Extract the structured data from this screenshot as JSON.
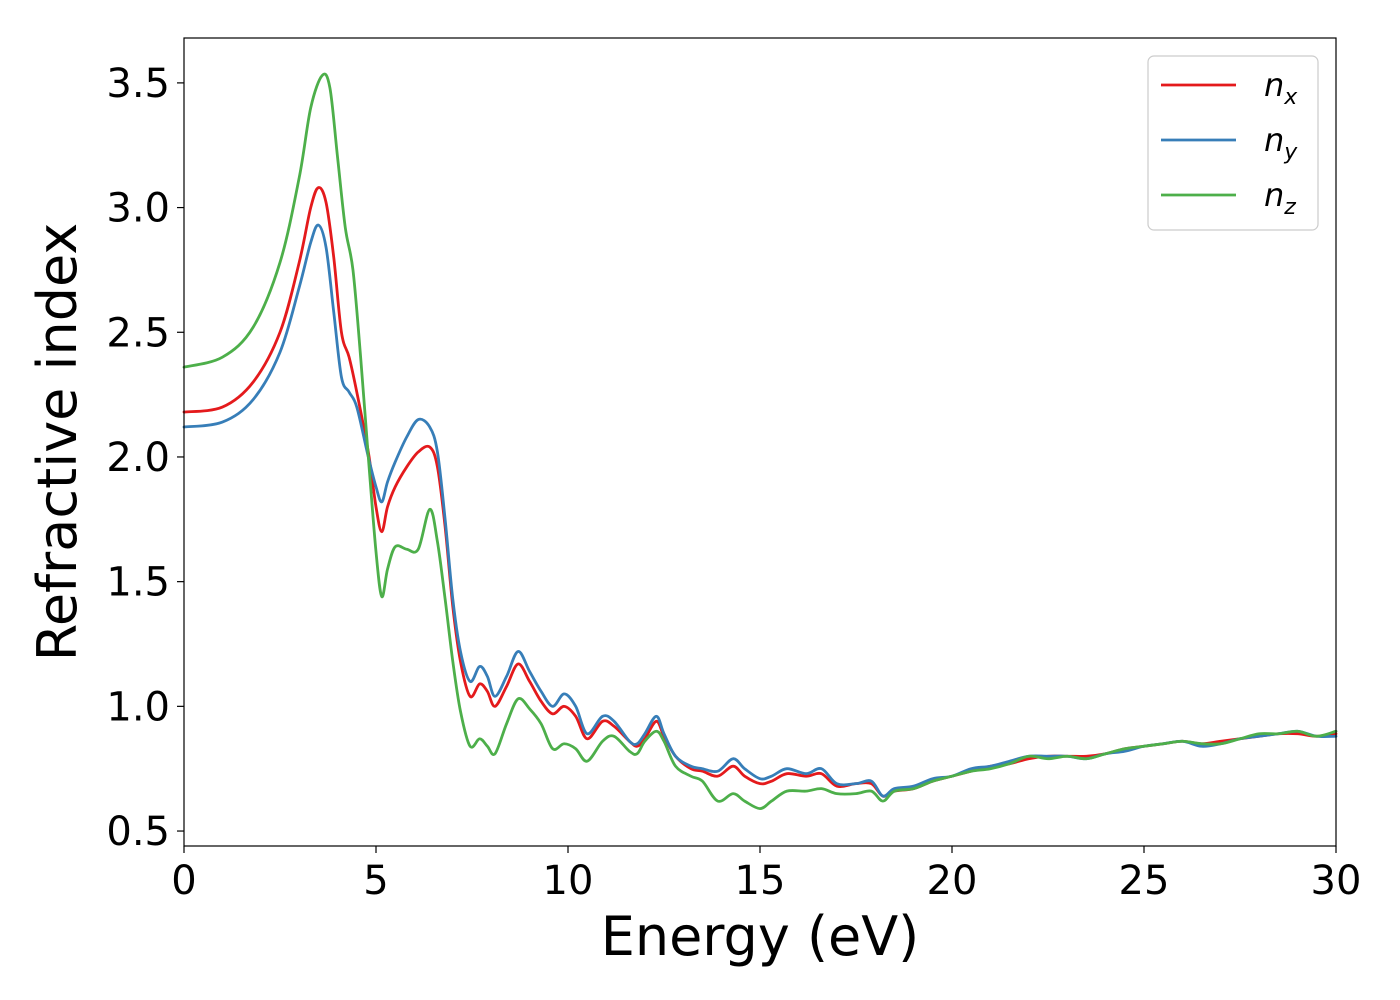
{
  "chart_data": {
    "type": "line",
    "xlabel": "Energy (eV)",
    "ylabel": "Refractive index",
    "xlim": [
      0,
      30
    ],
    "ylim": [
      0.44,
      3.68
    ],
    "xticks": [
      0,
      5,
      10,
      15,
      20,
      25,
      30
    ],
    "xtick_labels": [
      "0",
      "5",
      "10",
      "15",
      "20",
      "25",
      "30"
    ],
    "yticks": [
      0.5,
      1.0,
      1.5,
      2.0,
      2.5,
      3.0,
      3.5
    ],
    "ytick_labels": [
      "0.5",
      "1.0",
      "1.5",
      "2.0",
      "2.5",
      "3.0",
      "3.5"
    ],
    "grid": false,
    "legend_position": "top-right",
    "series": [
      {
        "name": "n_x",
        "label_base": "n",
        "label_sub": "x",
        "color": "#e41a1c",
        "points": [
          [
            0,
            2.18
          ],
          [
            1,
            2.2
          ],
          [
            1.8,
            2.3
          ],
          [
            2.5,
            2.5
          ],
          [
            3,
            2.78
          ],
          [
            3.3,
            3
          ],
          [
            3.5,
            3.08
          ],
          [
            3.7,
            3.02
          ],
          [
            3.9,
            2.8
          ],
          [
            4.1,
            2.5
          ],
          [
            4.3,
            2.4
          ],
          [
            4.5,
            2.26
          ],
          [
            4.8,
            2.02
          ],
          [
            5.0,
            1.8
          ],
          [
            5.15,
            1.7
          ],
          [
            5.3,
            1.8
          ],
          [
            5.5,
            1.88
          ],
          [
            5.8,
            1.96
          ],
          [
            6.1,
            2.02
          ],
          [
            6.4,
            2.04
          ],
          [
            6.6,
            1.96
          ],
          [
            6.8,
            1.72
          ],
          [
            7.0,
            1.4
          ],
          [
            7.2,
            1.18
          ],
          [
            7.45,
            1.04
          ],
          [
            7.7,
            1.09
          ],
          [
            7.9,
            1.06
          ],
          [
            8.1,
            1.0
          ],
          [
            8.4,
            1.08
          ],
          [
            8.7,
            1.17
          ],
          [
            9.0,
            1.1
          ],
          [
            9.3,
            1.02
          ],
          [
            9.6,
            0.97
          ],
          [
            9.9,
            1.0
          ],
          [
            10.2,
            0.96
          ],
          [
            10.5,
            0.87
          ],
          [
            10.9,
            0.94
          ],
          [
            11.2,
            0.92
          ],
          [
            11.6,
            0.86
          ],
          [
            11.8,
            0.84
          ],
          [
            12.0,
            0.87
          ],
          [
            12.3,
            0.94
          ],
          [
            12.5,
            0.88
          ],
          [
            12.8,
            0.8
          ],
          [
            13.2,
            0.75
          ],
          [
            13.5,
            0.74
          ],
          [
            13.9,
            0.72
          ],
          [
            14.3,
            0.76
          ],
          [
            14.6,
            0.72
          ],
          [
            15.0,
            0.69
          ],
          [
            15.3,
            0.7
          ],
          [
            15.7,
            0.73
          ],
          [
            16.2,
            0.72
          ],
          [
            16.6,
            0.73
          ],
          [
            17.0,
            0.68
          ],
          [
            17.5,
            0.69
          ],
          [
            17.9,
            0.69
          ],
          [
            18.2,
            0.64
          ],
          [
            18.5,
            0.66
          ],
          [
            19.0,
            0.67
          ],
          [
            19.5,
            0.7
          ],
          [
            20.0,
            0.72
          ],
          [
            20.5,
            0.74
          ],
          [
            21,
            0.76
          ],
          [
            21.5,
            0.77
          ],
          [
            22,
            0.79
          ],
          [
            22.5,
            0.8
          ],
          [
            23,
            0.8
          ],
          [
            23.5,
            0.8
          ],
          [
            24,
            0.81
          ],
          [
            24.5,
            0.83
          ],
          [
            25,
            0.84
          ],
          [
            25.5,
            0.85
          ],
          [
            26,
            0.86
          ],
          [
            26.5,
            0.85
          ],
          [
            27,
            0.86
          ],
          [
            27.5,
            0.87
          ],
          [
            28,
            0.88
          ],
          [
            28.5,
            0.89
          ],
          [
            29,
            0.89
          ],
          [
            29.5,
            0.88
          ],
          [
            30,
            0.89
          ]
        ]
      },
      {
        "name": "n_y",
        "label_base": "n",
        "label_sub": "y",
        "color": "#377eb8",
        "points": [
          [
            0,
            2.12
          ],
          [
            1,
            2.14
          ],
          [
            1.8,
            2.23
          ],
          [
            2.5,
            2.42
          ],
          [
            3,
            2.68
          ],
          [
            3.3,
            2.86
          ],
          [
            3.5,
            2.93
          ],
          [
            3.7,
            2.84
          ],
          [
            3.9,
            2.58
          ],
          [
            4.1,
            2.32
          ],
          [
            4.3,
            2.26
          ],
          [
            4.5,
            2.2
          ],
          [
            4.8,
            2.0
          ],
          [
            5.0,
            1.88
          ],
          [
            5.15,
            1.82
          ],
          [
            5.3,
            1.9
          ],
          [
            5.5,
            1.98
          ],
          [
            5.8,
            2.08
          ],
          [
            6.1,
            2.15
          ],
          [
            6.4,
            2.12
          ],
          [
            6.6,
            2.02
          ],
          [
            6.8,
            1.75
          ],
          [
            7.0,
            1.43
          ],
          [
            7.2,
            1.22
          ],
          [
            7.45,
            1.1
          ],
          [
            7.7,
            1.16
          ],
          [
            7.9,
            1.12
          ],
          [
            8.1,
            1.04
          ],
          [
            8.4,
            1.12
          ],
          [
            8.7,
            1.22
          ],
          [
            9.0,
            1.14
          ],
          [
            9.3,
            1.06
          ],
          [
            9.6,
            1.0
          ],
          [
            9.9,
            1.05
          ],
          [
            10.2,
            1.0
          ],
          [
            10.5,
            0.89
          ],
          [
            10.9,
            0.96
          ],
          [
            11.2,
            0.94
          ],
          [
            11.6,
            0.86
          ],
          [
            11.8,
            0.85
          ],
          [
            12.0,
            0.89
          ],
          [
            12.3,
            0.96
          ],
          [
            12.5,
            0.89
          ],
          [
            12.8,
            0.8
          ],
          [
            13.2,
            0.76
          ],
          [
            13.5,
            0.75
          ],
          [
            13.9,
            0.74
          ],
          [
            14.3,
            0.79
          ],
          [
            14.6,
            0.75
          ],
          [
            15.0,
            0.71
          ],
          [
            15.3,
            0.72
          ],
          [
            15.7,
            0.75
          ],
          [
            16.2,
            0.73
          ],
          [
            16.6,
            0.75
          ],
          [
            17.0,
            0.69
          ],
          [
            17.5,
            0.69
          ],
          [
            17.9,
            0.7
          ],
          [
            18.2,
            0.64
          ],
          [
            18.5,
            0.67
          ],
          [
            19.0,
            0.68
          ],
          [
            19.5,
            0.71
          ],
          [
            20.0,
            0.72
          ],
          [
            20.5,
            0.75
          ],
          [
            21,
            0.76
          ],
          [
            21.5,
            0.78
          ],
          [
            22,
            0.8
          ],
          [
            22.5,
            0.8
          ],
          [
            23,
            0.8
          ],
          [
            23.5,
            0.79
          ],
          [
            24,
            0.81
          ],
          [
            24.5,
            0.82
          ],
          [
            25,
            0.84
          ],
          [
            25.5,
            0.85
          ],
          [
            26,
            0.86
          ],
          [
            26.5,
            0.84
          ],
          [
            27,
            0.85
          ],
          [
            27.5,
            0.87
          ],
          [
            28,
            0.88
          ],
          [
            28.5,
            0.89
          ],
          [
            29,
            0.9
          ],
          [
            29.5,
            0.88
          ],
          [
            30,
            0.88
          ]
        ]
      },
      {
        "name": "n_z",
        "label_base": "n",
        "label_sub": "z",
        "color": "#4daf4a",
        "points": [
          [
            0,
            2.36
          ],
          [
            1,
            2.4
          ],
          [
            1.8,
            2.52
          ],
          [
            2.5,
            2.78
          ],
          [
            3,
            3.12
          ],
          [
            3.3,
            3.4
          ],
          [
            3.6,
            3.53
          ],
          [
            3.8,
            3.48
          ],
          [
            4.0,
            3.2
          ],
          [
            4.2,
            2.92
          ],
          [
            4.4,
            2.75
          ],
          [
            4.6,
            2.4
          ],
          [
            4.8,
            2.0
          ],
          [
            5.0,
            1.62
          ],
          [
            5.15,
            1.44
          ],
          [
            5.3,
            1.55
          ],
          [
            5.5,
            1.64
          ],
          [
            5.8,
            1.63
          ],
          [
            6.1,
            1.63
          ],
          [
            6.4,
            1.79
          ],
          [
            6.6,
            1.66
          ],
          [
            6.8,
            1.43
          ],
          [
            7.0,
            1.18
          ],
          [
            7.2,
            0.98
          ],
          [
            7.45,
            0.84
          ],
          [
            7.7,
            0.87
          ],
          [
            7.9,
            0.84
          ],
          [
            8.1,
            0.81
          ],
          [
            8.4,
            0.93
          ],
          [
            8.7,
            1.03
          ],
          [
            9.0,
            0.99
          ],
          [
            9.3,
            0.93
          ],
          [
            9.6,
            0.83
          ],
          [
            9.9,
            0.85
          ],
          [
            10.2,
            0.83
          ],
          [
            10.5,
            0.78
          ],
          [
            10.9,
            0.86
          ],
          [
            11.2,
            0.88
          ],
          [
            11.6,
            0.82
          ],
          [
            11.8,
            0.81
          ],
          [
            12.0,
            0.86
          ],
          [
            12.3,
            0.9
          ],
          [
            12.5,
            0.86
          ],
          [
            12.8,
            0.76
          ],
          [
            13.2,
            0.72
          ],
          [
            13.5,
            0.7
          ],
          [
            13.9,
            0.62
          ],
          [
            14.3,
            0.65
          ],
          [
            14.6,
            0.62
          ],
          [
            15.0,
            0.59
          ],
          [
            15.3,
            0.62
          ],
          [
            15.7,
            0.66
          ],
          [
            16.2,
            0.66
          ],
          [
            16.6,
            0.67
          ],
          [
            17.0,
            0.65
          ],
          [
            17.5,
            0.65
          ],
          [
            17.9,
            0.66
          ],
          [
            18.2,
            0.62
          ],
          [
            18.5,
            0.66
          ],
          [
            19.0,
            0.67
          ],
          [
            19.5,
            0.7
          ],
          [
            20.0,
            0.72
          ],
          [
            20.5,
            0.74
          ],
          [
            21,
            0.75
          ],
          [
            21.5,
            0.77
          ],
          [
            22,
            0.8
          ],
          [
            22.5,
            0.79
          ],
          [
            23,
            0.8
          ],
          [
            23.5,
            0.79
          ],
          [
            24,
            0.81
          ],
          [
            24.5,
            0.83
          ],
          [
            25,
            0.84
          ],
          [
            25.5,
            0.85
          ],
          [
            26,
            0.86
          ],
          [
            26.5,
            0.85
          ],
          [
            27,
            0.85
          ],
          [
            27.5,
            0.87
          ],
          [
            28,
            0.89
          ],
          [
            28.5,
            0.89
          ],
          [
            29,
            0.9
          ],
          [
            29.5,
            0.88
          ],
          [
            30,
            0.9
          ]
        ]
      }
    ]
  }
}
